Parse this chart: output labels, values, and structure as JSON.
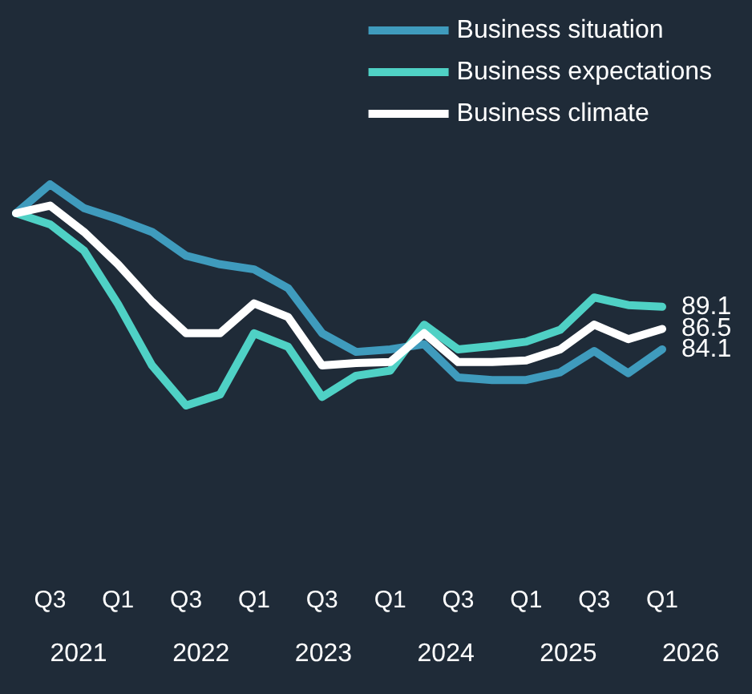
{
  "chart_data": {
    "type": "line",
    "categories": [
      null,
      "Q3",
      null,
      "Q1",
      null,
      "Q3",
      null,
      "Q1",
      null,
      "Q3",
      null,
      "Q1",
      null,
      "Q3",
      null,
      "Q1",
      null,
      "Q3",
      null,
      "Q1"
    ],
    "series": [
      {
        "name": "Business situation",
        "color": "#3f9bbd",
        "values": [
          100.1,
          103.5,
          100.7,
          99.4,
          97.9,
          95.1,
          94.1,
          93.5,
          91.3,
          86.0,
          83.8,
          84.1,
          84.7,
          80.8,
          80.5,
          80.5,
          81.4,
          83.9,
          81.3,
          84.1
        ],
        "value_labels": [
          null,
          null,
          null,
          null,
          null,
          null,
          null,
          null,
          null,
          null,
          null,
          null,
          null,
          null,
          null,
          null,
          null,
          null,
          null,
          "84.1"
        ]
      },
      {
        "name": "Business expectations",
        "color": "#4fd1c5",
        "values": [
          100.1,
          98.8,
          95.7,
          89.4,
          82.2,
          77.5,
          78.8,
          86.0,
          84.4,
          78.5,
          81.0,
          81.6,
          87.0,
          84.1,
          84.5,
          85.0,
          86.4,
          90.2,
          89.3,
          89.1
        ],
        "value_labels": [
          null,
          null,
          null,
          null,
          null,
          null,
          null,
          null,
          null,
          null,
          null,
          null,
          null,
          null,
          null,
          null,
          null,
          null,
          null,
          "89.1"
        ]
      },
      {
        "name": "Business climate",
        "color": "#ffffff",
        "values": [
          100.1,
          101.0,
          97.9,
          94.1,
          89.7,
          86.0,
          86.0,
          89.5,
          87.9,
          82.2,
          82.5,
          82.6,
          86.0,
          82.6,
          82.6,
          82.8,
          84.1,
          87.0,
          85.3,
          86.5
        ],
        "value_labels": [
          null,
          null,
          null,
          null,
          null,
          null,
          null,
          null,
          null,
          null,
          null,
          null,
          null,
          null,
          null,
          null,
          null,
          null,
          null,
          "86.5"
        ]
      }
    ],
    "annotations": [
      "2021",
      "2022",
      "2023",
      "2024",
      "2025",
      "2026"
    ],
    "legend": "top right",
    "grid": false,
    "marker": "none",
    "line_style": "solid"
  }
}
